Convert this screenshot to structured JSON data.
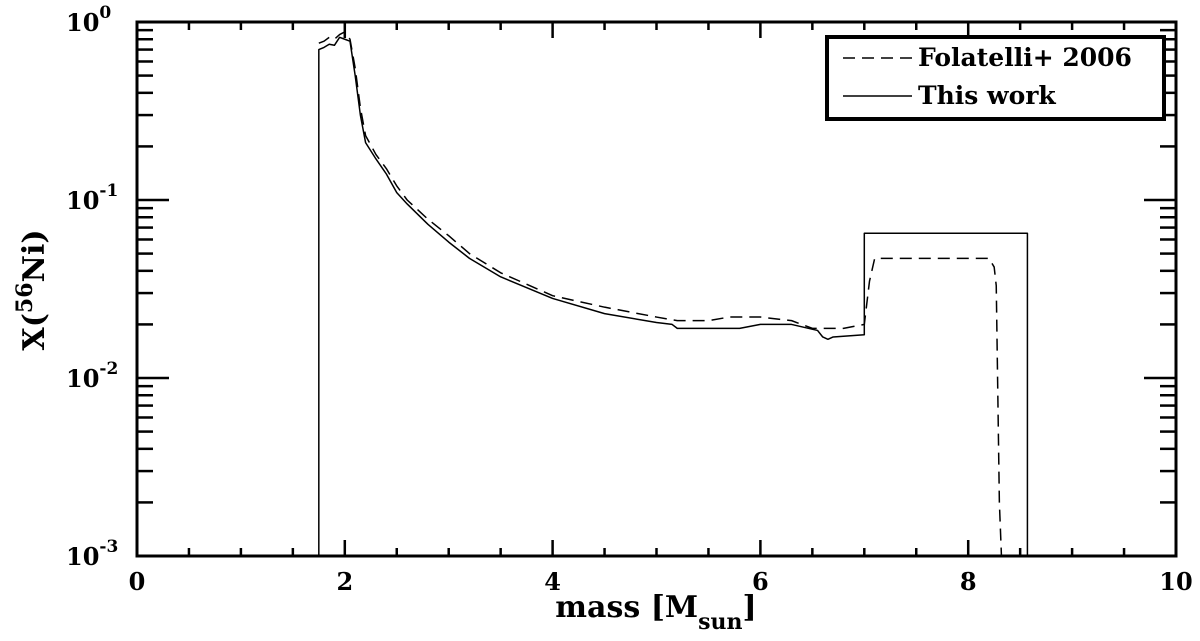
{
  "chart_data": {
    "type": "line",
    "xlabel": "mass [M",
    "xlabel_sub": "sun",
    "xlabel_end": "]",
    "ylabel_prefix": "X(",
    "ylabel_sup": "56",
    "ylabel_suffix": "Ni)",
    "xlim": [
      0,
      10
    ],
    "ylim": [
      0.001,
      1
    ],
    "yscale": "log",
    "grid": false,
    "legend_position": "top-right",
    "x_ticks": [
      "0",
      "2",
      "4",
      "6",
      "8",
      "10"
    ],
    "y_ticks": [
      {
        "base": "10",
        "exp": "-3"
      },
      {
        "base": "10",
        "exp": "-2"
      },
      {
        "base": "10",
        "exp": "-1"
      },
      {
        "base": "10",
        "exp": "0"
      }
    ],
    "series": [
      {
        "name": "Folatelli+ 2006",
        "style": "dashed",
        "color": "#000000",
        "x": [
          1.75,
          1.8,
          1.85,
          1.9,
          1.95,
          2.0,
          2.05,
          2.1,
          2.15,
          2.2,
          2.3,
          2.4,
          2.5,
          2.6,
          2.8,
          3.0,
          3.2,
          3.5,
          4.0,
          4.5,
          5.0,
          5.2,
          5.5,
          5.7,
          6.0,
          6.3,
          6.5,
          6.8,
          7.0,
          7.05,
          7.1,
          7.5,
          8.0,
          8.2,
          8.22,
          8.25,
          8.27,
          8.3,
          8.32
        ],
        "y": [
          0.76,
          0.78,
          0.82,
          0.8,
          0.85,
          0.88,
          0.8,
          0.55,
          0.33,
          0.23,
          0.18,
          0.15,
          0.12,
          0.1,
          0.078,
          0.063,
          0.05,
          0.039,
          0.029,
          0.025,
          0.022,
          0.021,
          0.021,
          0.022,
          0.022,
          0.021,
          0.019,
          0.019,
          0.02,
          0.035,
          0.047,
          0.047,
          0.047,
          0.047,
          0.045,
          0.042,
          0.033,
          0.002,
          0.001
        ]
      },
      {
        "name": "This work",
        "style": "solid",
        "color": "#000000",
        "x": [
          1.75,
          1.75,
          1.8,
          1.85,
          1.9,
          1.95,
          2.0,
          2.05,
          2.1,
          2.15,
          2.2,
          2.3,
          2.4,
          2.5,
          2.6,
          2.8,
          3.0,
          3.2,
          3.5,
          4.0,
          4.5,
          5.0,
          5.15,
          5.2,
          5.5,
          5.8,
          6.0,
          6.3,
          6.55,
          6.6,
          6.65,
          6.7,
          7.0,
          7.0,
          8.57,
          8.57
        ],
        "y": [
          0.001,
          0.7,
          0.72,
          0.75,
          0.74,
          0.82,
          0.8,
          0.78,
          0.5,
          0.3,
          0.21,
          0.17,
          0.14,
          0.11,
          0.095,
          0.073,
          0.058,
          0.047,
          0.037,
          0.028,
          0.023,
          0.0205,
          0.02,
          0.019,
          0.019,
          0.019,
          0.02,
          0.02,
          0.0185,
          0.017,
          0.0165,
          0.017,
          0.0175,
          0.065,
          0.065,
          0.001
        ]
      }
    ]
  }
}
